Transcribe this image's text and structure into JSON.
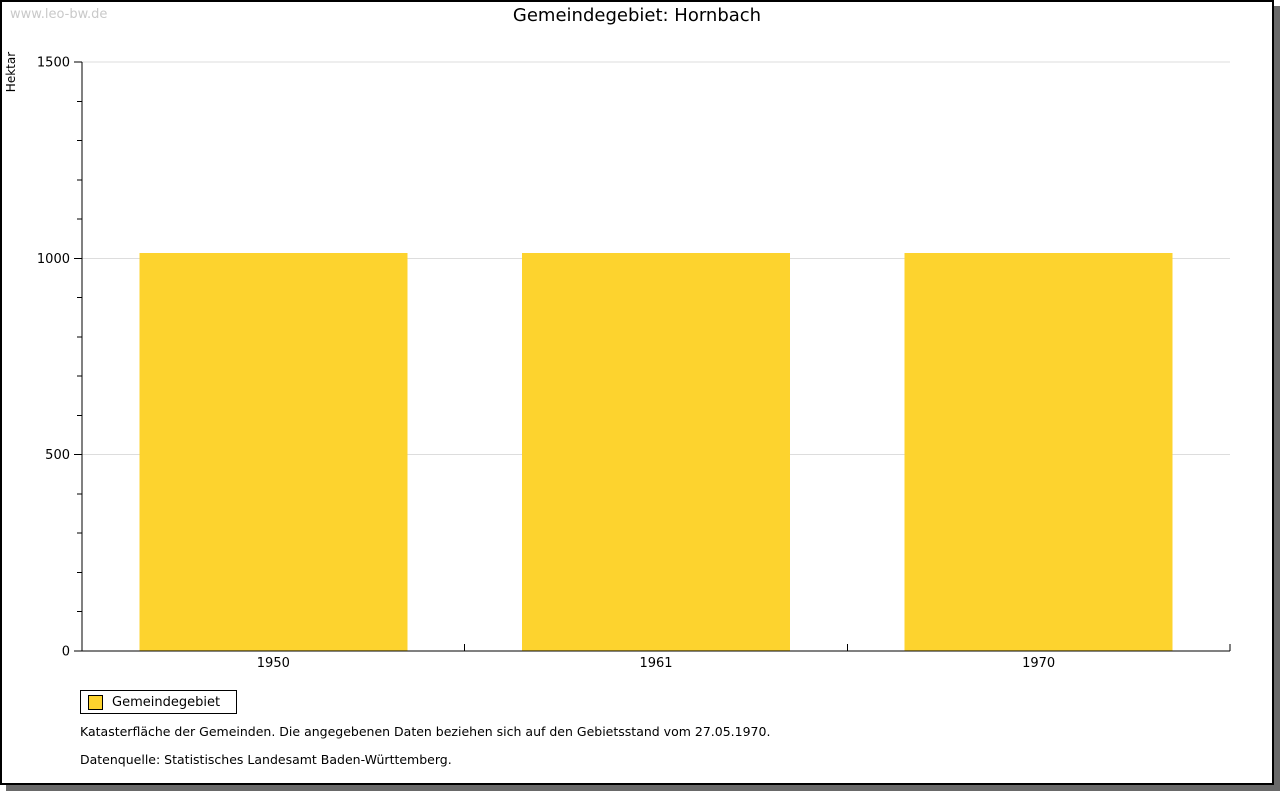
{
  "watermark": "www.leo-bw.de",
  "title": "Gemeindegebiet: Hornbach",
  "chart_data": {
    "type": "bar",
    "title": "Gemeindegebiet: Hornbach",
    "categories": [
      "1950",
      "1961",
      "1970"
    ],
    "series": [
      {
        "name": "Gemeindegebiet",
        "values": [
          1013,
          1013,
          1013
        ]
      }
    ],
    "xlabel": "",
    "ylabel": "Hektar",
    "unit": "Hektar",
    "ylim": [
      0,
      1500
    ],
    "yticks": [
      0,
      500,
      1000,
      1500
    ],
    "ytick_step": 500,
    "minor_tick_step": 100,
    "grid": true,
    "legend_position": "below-left"
  },
  "legend": {
    "items": [
      {
        "label": "Gemeindegebiet",
        "color": "#fdd32e"
      }
    ]
  },
  "footnotes": [
    "Katasterfläche der Gemeinden. Die angegebenen Daten beziehen sich auf den Gebietsstand vom 27.05.1970.",
    "Datenquelle: Statistisches Landesamt Baden-Württemberg."
  ],
  "colors": {
    "bar": "#fdd32e",
    "grid": "#dddddd",
    "axis": "#000000",
    "text": "#000000",
    "watermark": "#c9c9c9",
    "frame_border": "#000000",
    "frame_shadow": "#696969",
    "background": "#ffffff"
  }
}
